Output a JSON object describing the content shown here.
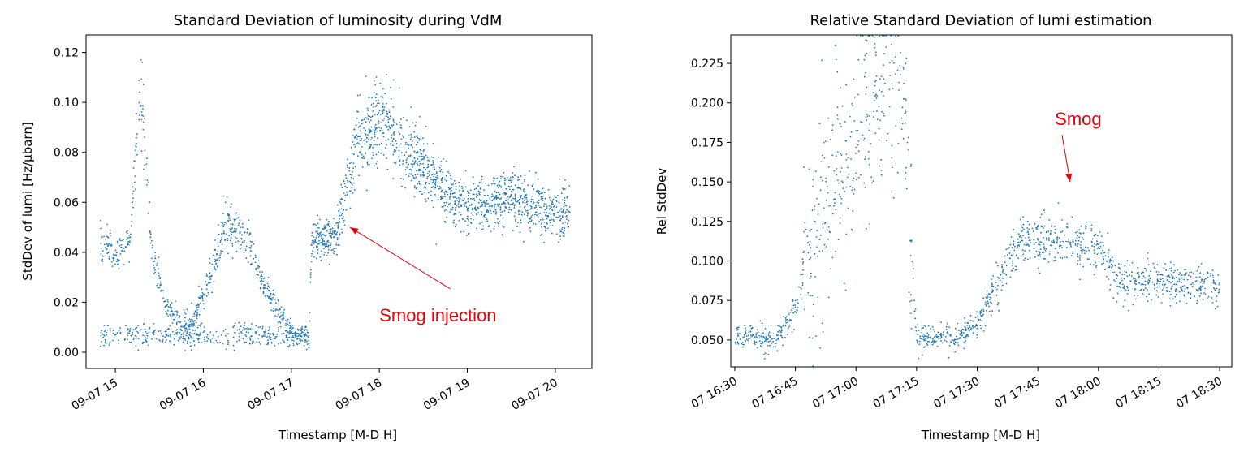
{
  "colors": {
    "series": "#1f77b4",
    "annotation": "#e8000b",
    "axes": "#000000"
  },
  "chart_data": [
    {
      "type": "scatter",
      "title": "Standard Deviation of luminosity during VdM",
      "xlabel": "Timestamp [M-D H]",
      "ylabel": "StdDev of lumi [Hz/μbarn]",
      "x_axis_kind": "datetime",
      "xlim": [
        "2022-09-07 14:40",
        "2022-09-07 20:25"
      ],
      "ylim": [
        -0.0065,
        0.127
      ],
      "x_tick_values": [
        "2022-09-07 15:00",
        "2022-09-07 16:00",
        "2022-09-07 17:00",
        "2022-09-07 18:00",
        "2022-09-07 19:00",
        "2022-09-07 20:00"
      ],
      "x_tick_labels": [
        "09-07 15",
        "09-07 16",
        "09-07 17",
        "09-07 18",
        "09-07 19",
        "09-07 20"
      ],
      "y_ticks": [
        0.0,
        0.02,
        0.04,
        0.06,
        0.08,
        0.1,
        0.12
      ],
      "y_tick_labels": [
        "0.00",
        "0.02",
        "0.04",
        "0.06",
        "0.08",
        "0.10",
        "0.12"
      ],
      "grid": false,
      "legend": "none",
      "x_time_fraction_unit": "hour of 2022-09-07",
      "trend": [
        {
          "x": "2022-09-07 14:50",
          "y": 0.044
        },
        {
          "x": "2022-09-07 15:00",
          "y": 0.04
        },
        {
          "x": "2022-09-07 15:10",
          "y": 0.045
        },
        {
          "x": "2022-09-07 15:17",
          "y": 0.11
        },
        {
          "x": "2022-09-07 15:25",
          "y": 0.04
        },
        {
          "x": "2022-09-07 15:35",
          "y": 0.018
        },
        {
          "x": "2022-09-07 15:50",
          "y": 0.009
        },
        {
          "x": "2022-09-07 16:05",
          "y": 0.03
        },
        {
          "x": "2022-09-07 16:15",
          "y": 0.053
        },
        {
          "x": "2022-09-07 16:30",
          "y": 0.044
        },
        {
          "x": "2022-09-07 16:45",
          "y": 0.022
        },
        {
          "x": "2022-09-07 17:00",
          "y": 0.008
        },
        {
          "x": "2022-09-07 17:12",
          "y": 0.006
        },
        {
          "x": "2022-09-07 17:14",
          "y": 0.045
        },
        {
          "x": "2022-09-07 17:30",
          "y": 0.046
        },
        {
          "x": "2022-09-07 17:45",
          "y": 0.085
        },
        {
          "x": "2022-09-07 18:00",
          "y": 0.094
        },
        {
          "x": "2022-09-07 18:30",
          "y": 0.072
        },
        {
          "x": "2022-09-07 19:00",
          "y": 0.058
        },
        {
          "x": "2022-09-07 19:30",
          "y": 0.062
        },
        {
          "x": "2022-09-07 20:00",
          "y": 0.056
        },
        {
          "x": "2022-09-07 20:10",
          "y": 0.056
        }
      ],
      "annotations": [
        {
          "text": "Smog injection",
          "target_x": "2022-09-07 17:40",
          "target_y": 0.05,
          "text_x": "2022-09-07 18:40",
          "text_y": 0.015
        }
      ]
    },
    {
      "type": "scatter",
      "title": "Relative Standard Deviation of lumi estimation",
      "xlabel": "Timestamp [M-D H]",
      "ylabel": "Rel StdDev",
      "x_axis_kind": "datetime",
      "xlim": [
        "2022-09-07 16:29",
        "2022-09-07 18:33"
      ],
      "ylim": [
        0.033,
        0.243
      ],
      "x_tick_values": [
        "2022-09-07 16:30",
        "2022-09-07 16:45",
        "2022-09-07 17:00",
        "2022-09-07 17:15",
        "2022-09-07 17:30",
        "2022-09-07 17:45",
        "2022-09-07 18:00",
        "2022-09-07 18:15",
        "2022-09-07 18:30"
      ],
      "x_tick_labels": [
        "07 16:30",
        "07 16:45",
        "07 17:00",
        "07 17:15",
        "07 17:30",
        "07 17:45",
        "07 18:00",
        "07 18:15",
        "07 18:30"
      ],
      "y_ticks": [
        0.05,
        0.075,
        0.1,
        0.125,
        0.15,
        0.175,
        0.2,
        0.225
      ],
      "y_tick_labels": [
        "0.050",
        "0.075",
        "0.100",
        "0.125",
        "0.150",
        "0.175",
        "0.200",
        "0.225"
      ],
      "grid": false,
      "legend": "none",
      "trend": [
        {
          "x": "2022-09-07 16:30",
          "y": 0.052
        },
        {
          "x": "2022-09-07 16:35",
          "y": 0.051
        },
        {
          "x": "2022-09-07 16:40",
          "y": 0.05
        },
        {
          "x": "2022-09-07 16:45",
          "y": 0.07
        },
        {
          "x": "2022-09-07 16:50",
          "y": 0.12
        },
        {
          "x": "2022-09-07 16:55",
          "y": 0.16
        },
        {
          "x": "2022-09-07 17:00",
          "y": 0.17
        },
        {
          "x": "2022-09-07 17:05",
          "y": 0.21
        },
        {
          "x": "2022-09-07 17:12",
          "y": 0.2
        },
        {
          "x": "2022-09-07 17:15",
          "y": 0.051
        },
        {
          "x": "2022-09-07 17:25",
          "y": 0.051
        },
        {
          "x": "2022-09-07 17:30",
          "y": 0.06
        },
        {
          "x": "2022-09-07 17:35",
          "y": 0.085
        },
        {
          "x": "2022-09-07 17:40",
          "y": 0.112
        },
        {
          "x": "2022-09-07 17:50",
          "y": 0.113
        },
        {
          "x": "2022-09-07 18:00",
          "y": 0.11
        },
        {
          "x": "2022-09-07 18:05",
          "y": 0.088
        },
        {
          "x": "2022-09-07 18:20",
          "y": 0.085
        },
        {
          "x": "2022-09-07 18:30",
          "y": 0.084
        }
      ],
      "annotations": [
        {
          "text": "Smog",
          "target_x": "2022-09-07 17:53",
          "target_y": 0.15,
          "text_x": "2022-09-07 17:55",
          "text_y": 0.19
        }
      ]
    }
  ]
}
